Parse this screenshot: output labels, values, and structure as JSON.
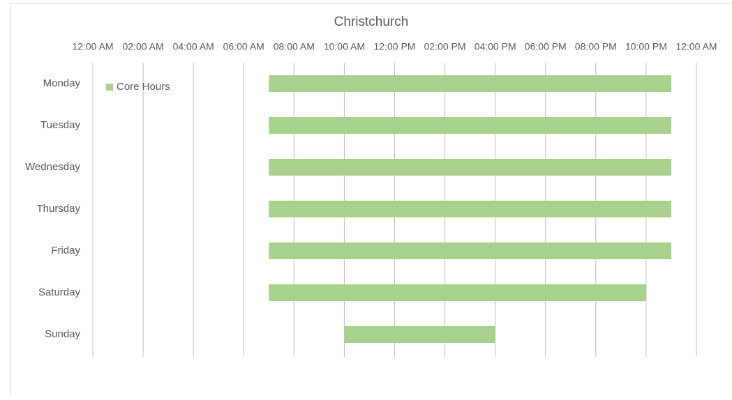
{
  "chart_data": {
    "type": "bar",
    "title": "Christchurch",
    "categories": [
      "Monday",
      "Tuesday",
      "Wednesday",
      "Thursday",
      "Friday",
      "Saturday",
      "Sunday"
    ],
    "series": [
      {
        "name": "Core Hours",
        "color": "#a9d18e",
        "start": [
          7,
          7,
          7,
          7,
          7,
          7,
          10
        ],
        "end": [
          23,
          23,
          23,
          23,
          23,
          22,
          16
        ]
      }
    ],
    "xlim": [
      0,
      24
    ],
    "xticks": [
      {
        "value": 0,
        "label": "12:00 AM"
      },
      {
        "value": 2,
        "label": "02:00 AM"
      },
      {
        "value": 4,
        "label": "04:00 AM"
      },
      {
        "value": 6,
        "label": "06:00 AM"
      },
      {
        "value": 8,
        "label": "08:00 AM"
      },
      {
        "value": 10,
        "label": "10:00 AM"
      },
      {
        "value": 12,
        "label": "12:00 PM"
      },
      {
        "value": 14,
        "label": "02:00 PM"
      },
      {
        "value": 16,
        "label": "04:00 PM"
      },
      {
        "value": 18,
        "label": "06:00 PM"
      },
      {
        "value": 20,
        "label": "08:00 PM"
      },
      {
        "value": 22,
        "label": "10:00 PM"
      },
      {
        "value": 24,
        "label": "12:00 AM"
      }
    ],
    "grid": true,
    "legend": "top-left"
  }
}
